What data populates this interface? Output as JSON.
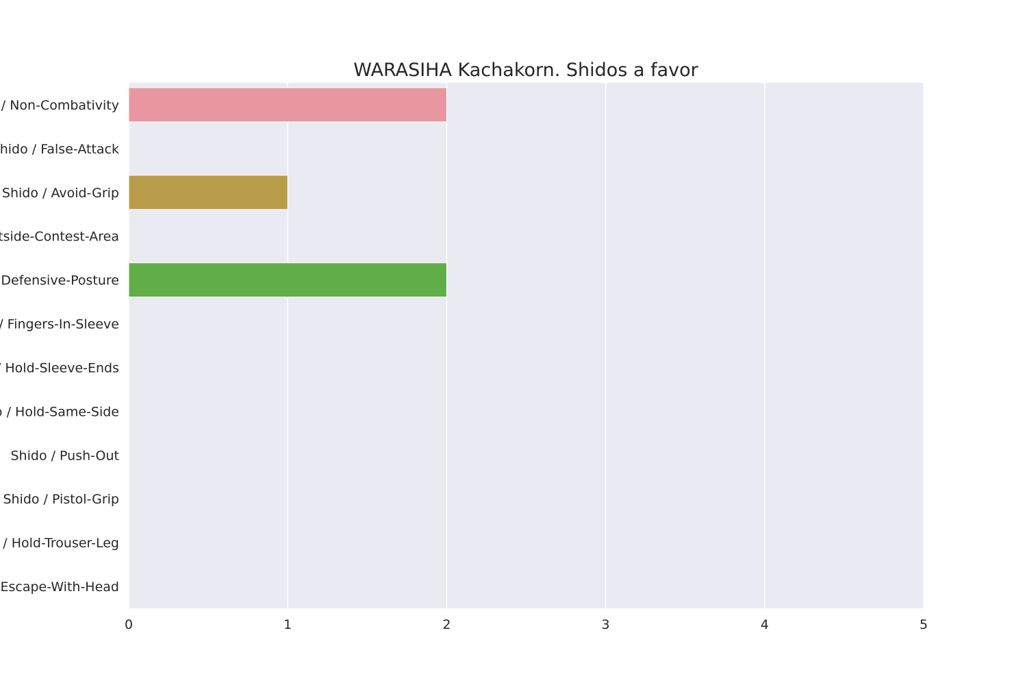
{
  "chart_data": {
    "type": "bar",
    "orientation": "horizontal",
    "title": "WARASIHA Kachakorn. Shidos a favor",
    "xlabel": "",
    "ylabel": "",
    "categories": [
      "Shido / Non-Combativity",
      "Shido / False-Attack",
      "Shido / Avoid-Grip",
      "Shido / Outside-Contest-Area",
      "Shido / Defensive-Posture",
      "Shido / Fingers-In-Sleeve",
      "Shido / Hold-Sleeve-Ends",
      "Shido / Hold-Same-Side",
      "Shido / Push-Out",
      "Shido / Pistol-Grip",
      "Shido / Hold-Trouser-Leg",
      "Shido / Escape-With-Head"
    ],
    "values": [
      2,
      0,
      1,
      0,
      2,
      0,
      0,
      0,
      0,
      0,
      0,
      0
    ],
    "colors": [
      "#e8969f",
      "#d19f4b",
      "#b89c48",
      "#97a440",
      "#61ae48",
      "#4db27c",
      "#4aae9a",
      "#4aabad",
      "#4fa7c3",
      "#8d9ee0",
      "#c292e0",
      "#e08ec3"
    ],
    "xlim": [
      0,
      5
    ],
    "xticks": [
      "0",
      "1",
      "2",
      "3",
      "4",
      "5"
    ],
    "grid": true,
    "plot_background": "#eaeaf2",
    "grid_color": "#ffffff"
  }
}
